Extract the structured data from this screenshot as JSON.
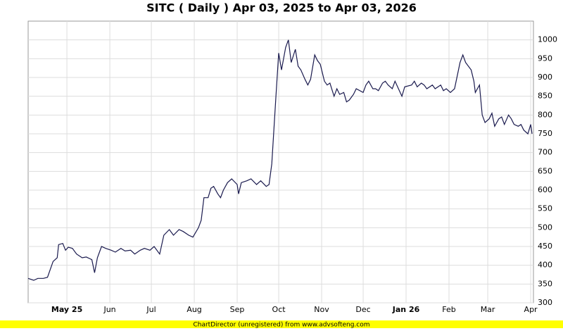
{
  "chart_data": {
    "type": "line",
    "title": "SITC ( Daily ) Apr 03, 2025 to Apr 03, 2026",
    "footer": "ChartDirector (unregistered) from www.advsofteng.com",
    "color": "#1a1a4e",
    "grid": true,
    "xlim": [
      "2025-04-03",
      "2026-04-03"
    ],
    "xticks": [
      {
        "value": "2025-05-01",
        "label": "May 25"
      },
      {
        "value": "2025-06-01",
        "label": "Jun"
      },
      {
        "value": "2025-07-01",
        "label": "Jul"
      },
      {
        "value": "2025-08-01",
        "label": "Aug"
      },
      {
        "value": "2025-09-01",
        "label": "Sep"
      },
      {
        "value": "2025-10-01",
        "label": "Oct"
      },
      {
        "value": "2025-11-01",
        "label": "Nov"
      },
      {
        "value": "2025-12-01",
        "label": "Dec"
      },
      {
        "value": "2026-01-01",
        "label": "Jan 26"
      },
      {
        "value": "2026-02-01",
        "label": "Feb"
      },
      {
        "value": "2026-03-01",
        "label": "Mar"
      },
      {
        "value": "2026-04-01",
        "label": "Apr"
      }
    ],
    "ylim": [
      300,
      1050
    ],
    "yticks": [
      300,
      350,
      400,
      450,
      500,
      550,
      600,
      650,
      700,
      750,
      800,
      850,
      900,
      950,
      1000
    ],
    "x": [
      "2025-04-03",
      "2025-04-07",
      "2025-04-10",
      "2025-04-14",
      "2025-04-17",
      "2025-04-21",
      "2025-04-24",
      "2025-04-25",
      "2025-04-28",
      "2025-04-30",
      "2025-05-02",
      "2025-05-05",
      "2025-05-08",
      "2025-05-12",
      "2025-05-15",
      "2025-05-19",
      "2025-05-21",
      "2025-05-23",
      "2025-05-26",
      "2025-05-29",
      "2025-06-02",
      "2025-06-05",
      "2025-06-09",
      "2025-06-12",
      "2025-06-16",
      "2025-06-19",
      "2025-06-23",
      "2025-06-26",
      "2025-06-30",
      "2025-07-03",
      "2025-07-07",
      "2025-07-10",
      "2025-07-14",
      "2025-07-17",
      "2025-07-21",
      "2025-07-24",
      "2025-07-28",
      "2025-07-31",
      "2025-08-04",
      "2025-08-06",
      "2025-08-08",
      "2025-08-11",
      "2025-08-13",
      "2025-08-15",
      "2025-08-18",
      "2025-08-20",
      "2025-08-22",
      "2025-08-25",
      "2025-08-28",
      "2025-09-01",
      "2025-09-02",
      "2025-09-04",
      "2025-09-08",
      "2025-09-11",
      "2025-09-15",
      "2025-09-18",
      "2025-09-22",
      "2025-09-24",
      "2025-09-26",
      "2025-09-29",
      "2025-10-01",
      "2025-10-03",
      "2025-10-06",
      "2025-10-08",
      "2025-10-10",
      "2025-10-13",
      "2025-10-15",
      "2025-10-17",
      "2025-10-20",
      "2025-10-22",
      "2025-10-24",
      "2025-10-27",
      "2025-10-29",
      "2025-10-31",
      "2025-11-03",
      "2025-11-05",
      "2025-11-07",
      "2025-11-10",
      "2025-11-12",
      "2025-11-14",
      "2025-11-17",
      "2025-11-19",
      "2025-11-21",
      "2025-11-24",
      "2025-11-26",
      "2025-12-01",
      "2025-12-03",
      "2025-12-05",
      "2025-12-08",
      "2025-12-10",
      "2025-12-12",
      "2025-12-15",
      "2025-12-17",
      "2025-12-19",
      "2025-12-22",
      "2025-12-24",
      "2025-12-29",
      "2025-12-31",
      "2026-01-05",
      "2026-01-07",
      "2026-01-09",
      "2026-01-12",
      "2026-01-14",
      "2026-01-16",
      "2026-01-20",
      "2026-01-22",
      "2026-01-26",
      "2026-01-28",
      "2026-01-30",
      "2026-02-02",
      "2026-02-05",
      "2026-02-09",
      "2026-02-11",
      "2026-02-13",
      "2026-02-17",
      "2026-02-19",
      "2026-02-20",
      "2026-02-23",
      "2026-02-25",
      "2026-02-27",
      "2026-03-02",
      "2026-03-04",
      "2026-03-06",
      "2026-03-09",
      "2026-03-11",
      "2026-03-13",
      "2026-03-16",
      "2026-03-18",
      "2026-03-20",
      "2026-03-23",
      "2026-03-25",
      "2026-03-27",
      "2026-03-30",
      "2026-04-01",
      "2026-04-02"
    ],
    "values": [
      365,
      360,
      365,
      365,
      368,
      410,
      420,
      455,
      458,
      440,
      448,
      445,
      430,
      420,
      422,
      415,
      380,
      420,
      450,
      445,
      440,
      435,
      445,
      438,
      440,
      430,
      440,
      445,
      440,
      450,
      430,
      480,
      495,
      480,
      495,
      490,
      480,
      475,
      500,
      520,
      580,
      580,
      605,
      610,
      590,
      580,
      600,
      620,
      630,
      615,
      590,
      620,
      625,
      630,
      615,
      625,
      610,
      615,
      670,
      850,
      965,
      920,
      980,
      1000,
      940,
      975,
      930,
      920,
      895,
      880,
      895,
      960,
      945,
      935,
      890,
      880,
      885,
      850,
      870,
      855,
      860,
      835,
      840,
      855,
      870,
      860,
      880,
      890,
      870,
      870,
      865,
      885,
      890,
      880,
      870,
      890,
      850,
      875,
      880,
      890,
      875,
      885,
      880,
      870,
      880,
      870,
      880,
      865,
      870,
      860,
      870,
      940,
      960,
      940,
      920,
      890,
      860,
      880,
      800,
      780,
      790,
      805,
      770,
      790,
      795,
      775,
      800,
      790,
      775,
      770,
      775,
      760,
      750,
      775,
      750
    ]
  }
}
